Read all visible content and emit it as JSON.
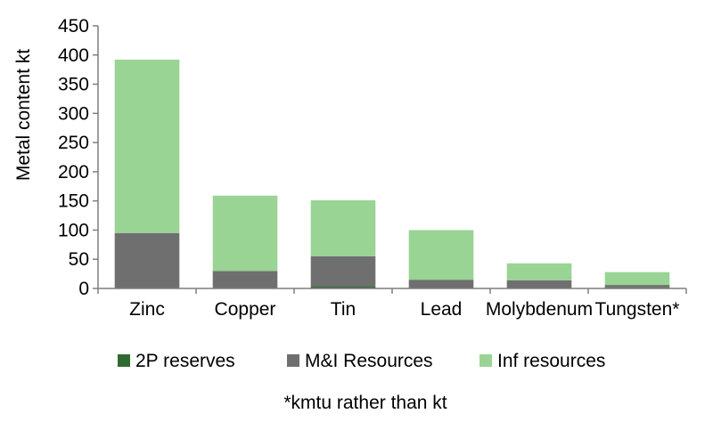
{
  "chart_data": {
    "type": "bar",
    "stacked": true,
    "categories": [
      "Zinc",
      "Copper",
      "Tin",
      "Lead",
      "Molybdenum",
      "Tungsten*"
    ],
    "series": [
      {
        "name": "2P reserves",
        "color": "#2e6b2e",
        "values": [
          0,
          0,
          3,
          0,
          0,
          2
        ]
      },
      {
        "name": "M&I Resources",
        "color": "#6f6f6f",
        "values": [
          95,
          30,
          52,
          15,
          14,
          4
        ]
      },
      {
        "name": "Inf resources",
        "color": "#99d494",
        "values": [
          297,
          129,
          96,
          85,
          29,
          22
        ]
      }
    ],
    "ylabel": "Metal content kt",
    "ylim": [
      0,
      450
    ],
    "yticks": [
      0,
      50,
      100,
      150,
      200,
      250,
      300,
      350,
      400,
      450
    ],
    "grid": false,
    "legend_position": "bottom",
    "footnote": "*kmtu rather than kt"
  }
}
